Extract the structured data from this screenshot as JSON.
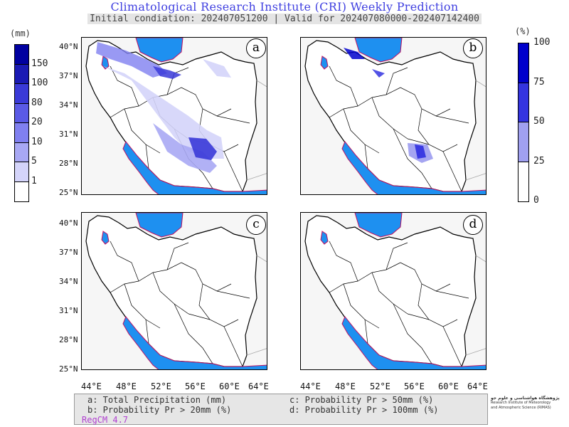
{
  "header": {
    "title": "Climatological Research Institute (CRI) Weekly Prediction",
    "subtitle": "Initial condiation: 202407051200 | Valid for 202407080000-202407142400"
  },
  "left_colorbar": {
    "unit": "(mm)",
    "labels": [
      "150",
      "100",
      "80",
      "20",
      "10",
      "5",
      "1"
    ],
    "colors": [
      "#0000a0",
      "#1a1ab4",
      "#3a3ad8",
      "#5a5ae6",
      "#8080f0",
      "#a8a8f4",
      "#d4d4fa",
      "#ffffff"
    ]
  },
  "right_colorbar": {
    "unit": "(%)",
    "labels": [
      "100",
      "75",
      "50",
      "25",
      "0"
    ],
    "colors": [
      "#0000cc",
      "#3434e0",
      "#a0a0f0",
      "#ffffff"
    ]
  },
  "panels": [
    {
      "id": "a",
      "label": "a"
    },
    {
      "id": "b",
      "label": "b"
    },
    {
      "id": "c",
      "label": "c"
    },
    {
      "id": "d",
      "label": "d"
    }
  ],
  "latitude_labels": [
    "40°N",
    "37°N",
    "34°N",
    "31°N",
    "28°N",
    "25°N"
  ],
  "longitude_labels": [
    "44°E",
    "48°E",
    "52°E",
    "56°E",
    "60°E",
    "64°E"
  ],
  "legend": {
    "a": "a: Total Precipitation (mm)",
    "b": "b: Probability Pr > 20mm (%)",
    "c": "c: Probability Pr > 50mm (%)",
    "d": "d: Probability Pr > 100mm (%)",
    "model": "RegCM 4.7"
  },
  "logo": {
    "line1": "پژوهشگاه هواشناسی و علوم جو",
    "line2": "Research Institute of Meteorology",
    "line3": "and Atmospheric Science (RIMAS)"
  },
  "colors": {
    "water": "#1e90f0",
    "coast": "#c01060",
    "land": "#ffffff",
    "outside": "#f6f6f6"
  }
}
